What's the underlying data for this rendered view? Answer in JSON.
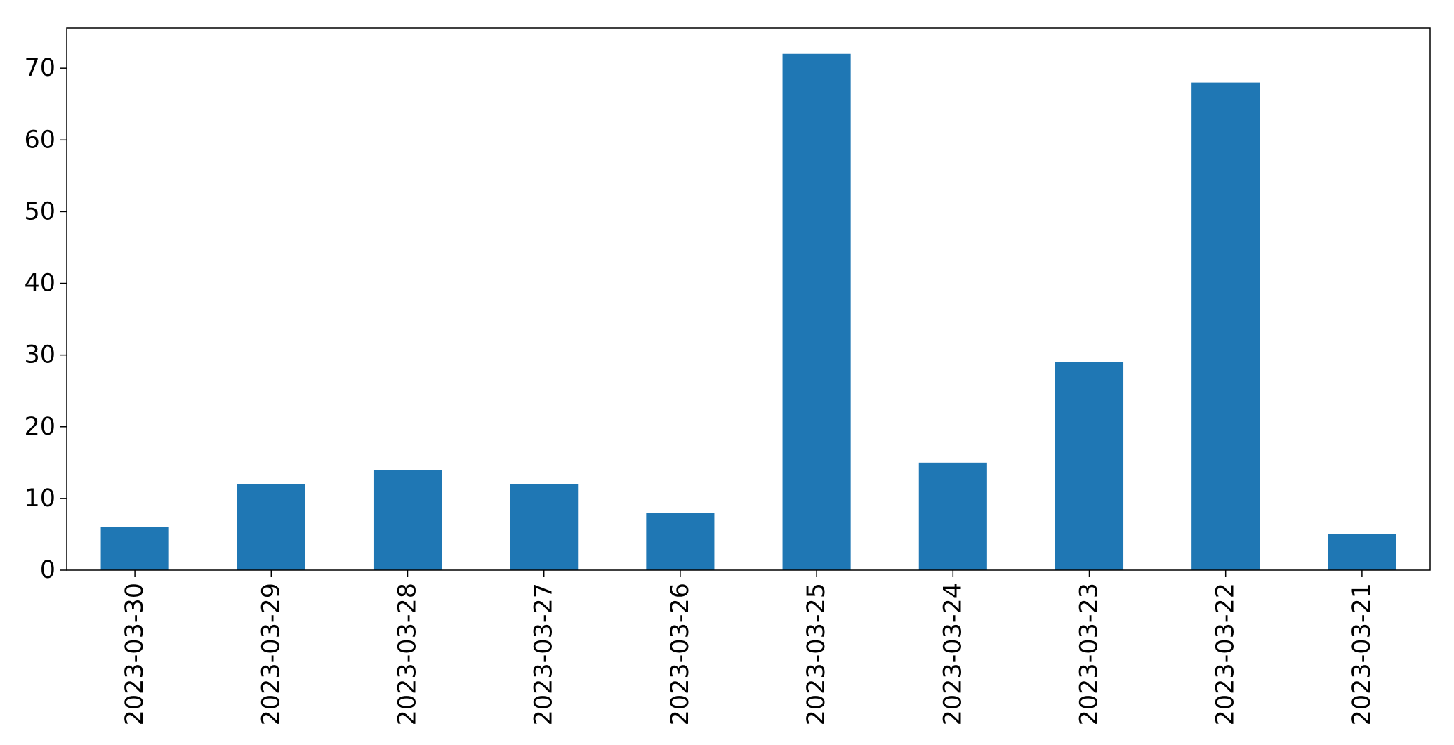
{
  "chart_data": {
    "type": "bar",
    "categories": [
      "2023-03-30",
      "2023-03-29",
      "2023-03-28",
      "2023-03-27",
      "2023-03-26",
      "2023-03-25",
      "2023-03-24",
      "2023-03-23",
      "2023-03-22",
      "2023-03-21"
    ],
    "values": [
      6,
      12,
      14,
      12,
      8,
      72,
      15,
      29,
      68,
      5
    ],
    "title": "",
    "xlabel": "",
    "ylabel": "",
    "ylim": [
      0,
      75.6
    ],
    "yticks": [
      0,
      10,
      20,
      30,
      40,
      50,
      60,
      70
    ],
    "grid": false,
    "legend": "none",
    "bar_color": "#1f77b4"
  }
}
